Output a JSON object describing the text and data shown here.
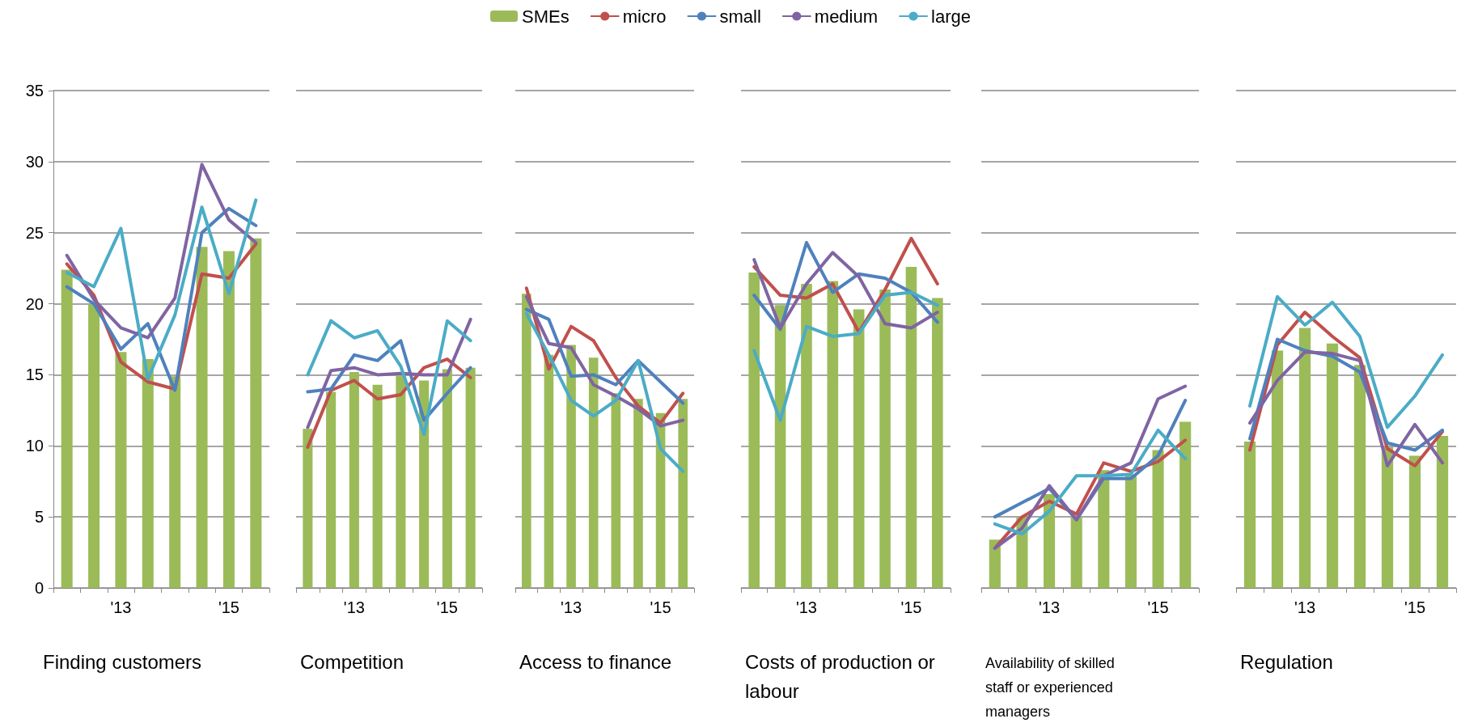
{
  "chart_data": [
    {
      "type": "bar",
      "xlabel": "Finding customers",
      "categories": [
        null,
        null,
        "'13",
        null,
        null,
        null,
        "'15",
        null
      ],
      "ylim": [
        0,
        35
      ],
      "yticks": [
        0,
        5,
        10,
        15,
        20,
        25,
        30,
        35
      ],
      "grid": "y",
      "legend": "top",
      "marker": "none",
      "line_style": "solid",
      "series": [
        {
          "name": "SMEs",
          "color": "#9bbb59",
          "values": [
            22.4,
            20.0,
            16.6,
            16.1,
            14.9,
            24.0,
            23.7,
            24.6
          ]
        },
        {
          "name": "micro",
          "type": "line",
          "color": "#c0504d",
          "values": [
            22.8,
            20.6,
            15.9,
            14.5,
            14.0,
            22.1,
            21.8,
            24.2
          ]
        },
        {
          "name": "small",
          "type": "line",
          "color": "#4f81bd",
          "values": [
            21.2,
            20.0,
            16.8,
            18.6,
            13.9,
            25.0,
            26.7,
            25.5
          ]
        },
        {
          "name": "medium",
          "type": "line",
          "color": "#8064a2",
          "values": [
            23.4,
            20.3,
            18.3,
            17.6,
            20.4,
            29.8,
            25.9,
            24.3
          ]
        },
        {
          "name": "large",
          "type": "line",
          "color": "#4bacc6",
          "values": [
            22.2,
            21.2,
            25.3,
            14.7,
            19.2,
            26.8,
            20.7,
            27.3
          ]
        }
      ]
    },
    {
      "type": "bar",
      "xlabel": "Competition",
      "categories": [
        null,
        null,
        "'13",
        null,
        null,
        null,
        "'15",
        null
      ],
      "ylim": [
        0,
        35
      ],
      "yticks": [
        0,
        5,
        10,
        15,
        20,
        25,
        30,
        35
      ],
      "tick_labels": "x",
      "grid": "y",
      "marker": "none",
      "line_style": "solid",
      "series": [
        {
          "color": "#9bbb59",
          "values": [
            11.2,
            13.8,
            15.2,
            14.3,
            15.0,
            14.6,
            15.4,
            15.5
          ]
        },
        {
          "type": "line",
          "color": "#c0504d",
          "values": [
            9.9,
            13.9,
            14.6,
            13.3,
            13.6,
            15.5,
            16.1,
            14.8
          ]
        },
        {
          "type": "line",
          "color": "#4f81bd",
          "values": [
            13.8,
            14.0,
            16.4,
            16.0,
            17.4,
            11.8,
            13.7,
            15.5
          ]
        },
        {
          "type": "line",
          "color": "#8064a2",
          "values": [
            11.3,
            15.3,
            15.5,
            15.0,
            15.1,
            15.0,
            15.0,
            18.9
          ]
        },
        {
          "type": "line",
          "color": "#4bacc6",
          "values": [
            15.0,
            18.8,
            17.6,
            18.1,
            15.6,
            10.8,
            18.8,
            17.4
          ]
        }
      ]
    },
    {
      "type": "bar",
      "xlabel": "Access to finance",
      "categories": [
        null,
        null,
        "'13",
        null,
        null,
        null,
        "'15",
        null
      ],
      "ylim": [
        0,
        35
      ],
      "yticks": [
        0,
        5,
        10,
        15,
        20,
        25,
        30,
        35
      ],
      "tick_labels": "x",
      "grid": "y",
      "marker": "none",
      "line_style": "solid",
      "series": [
        {
          "color": "#9bbb59",
          "values": [
            20.7,
            16.4,
            17.1,
            16.2,
            13.7,
            13.3,
            12.3,
            13.3
          ]
        },
        {
          "type": "line",
          "color": "#c0504d",
          "values": [
            21.1,
            15.4,
            18.4,
            17.4,
            14.8,
            12.8,
            11.6,
            13.7
          ]
        },
        {
          "type": "line",
          "color": "#4f81bd",
          "values": [
            19.6,
            18.9,
            14.9,
            15.0,
            14.3,
            16.0,
            14.5,
            13.0
          ]
        },
        {
          "type": "line",
          "color": "#8064a2",
          "values": [
            20.5,
            17.2,
            16.9,
            14.3,
            13.5,
            12.6,
            11.4,
            11.8
          ]
        },
        {
          "type": "line",
          "color": "#4bacc6",
          "values": [
            19.3,
            16.4,
            13.2,
            12.1,
            13.2,
            16.0,
            9.8,
            8.2
          ]
        }
      ]
    },
    {
      "type": "bar",
      "xlabel": "Costs of production or labour",
      "categories": [
        null,
        null,
        "'13",
        null,
        null,
        null,
        "'15",
        null
      ],
      "ylim": [
        0,
        35
      ],
      "yticks": [
        0,
        5,
        10,
        15,
        20,
        25,
        30,
        35
      ],
      "tick_labels": "x",
      "grid": "y",
      "marker": "none",
      "line_style": "solid",
      "series": [
        {
          "color": "#9bbb59",
          "values": [
            22.2,
            19.9,
            21.4,
            21.6,
            19.6,
            21.0,
            22.6,
            20.4
          ]
        },
        {
          "type": "line",
          "color": "#c0504d",
          "values": [
            22.6,
            20.6,
            20.4,
            21.4,
            18.0,
            21.0,
            24.6,
            21.4
          ]
        },
        {
          "type": "line",
          "color": "#4f81bd",
          "values": [
            20.6,
            18.2,
            24.3,
            20.8,
            22.1,
            21.8,
            20.8,
            18.7
          ]
        },
        {
          "type": "line",
          "color": "#8064a2",
          "values": [
            23.1,
            18.3,
            21.4,
            23.6,
            21.9,
            18.6,
            18.3,
            19.4
          ]
        },
        {
          "type": "line",
          "color": "#4bacc6",
          "values": [
            16.7,
            11.8,
            18.4,
            17.7,
            17.9,
            20.6,
            20.8,
            19.9
          ]
        }
      ]
    },
    {
      "type": "bar",
      "xlabel": "Availability of skilled staff or experienced managers",
      "categories": [
        null,
        null,
        "'13",
        null,
        null,
        null,
        "'15",
        null
      ],
      "ylim": [
        0,
        35
      ],
      "yticks": [
        0,
        5,
        10,
        15,
        20,
        25,
        30,
        35
      ],
      "tick_labels": "x",
      "grid": "y",
      "marker": "none",
      "line_style": "solid",
      "series": [
        {
          "color": "#9bbb59",
          "values": [
            3.4,
            5.0,
            6.6,
            5.0,
            8.3,
            8.0,
            9.7,
            11.7
          ]
        },
        {
          "type": "line",
          "color": "#c0504d",
          "values": [
            2.8,
            5.0,
            6.1,
            5.2,
            8.8,
            8.2,
            8.9,
            10.4
          ]
        },
        {
          "type": "line",
          "color": "#4f81bd",
          "values": [
            5.0,
            6.0,
            7.0,
            4.8,
            7.7,
            7.7,
            9.3,
            13.2
          ]
        },
        {
          "type": "line",
          "color": "#8064a2",
          "values": [
            2.8,
            4.2,
            7.2,
            4.8,
            7.9,
            8.8,
            13.3,
            14.2
          ]
        },
        {
          "type": "line",
          "color": "#4bacc6",
          "values": [
            4.5,
            3.8,
            5.4,
            7.9,
            7.9,
            8.0,
            11.1,
            9.1
          ]
        }
      ]
    },
    {
      "type": "bar",
      "xlabel": "Regulation",
      "categories": [
        null,
        null,
        "'13",
        null,
        null,
        null,
        "'15",
        null
      ],
      "ylim": [
        0,
        35
      ],
      "yticks": [
        0,
        5,
        10,
        15,
        20,
        25,
        30,
        35
      ],
      "tick_labels": "x",
      "grid": "y",
      "marker": "none",
      "line_style": "solid",
      "series": [
        {
          "color": "#9bbb59",
          "values": [
            10.3,
            16.7,
            18.3,
            17.2,
            15.7,
            9.9,
            9.3,
            10.7
          ]
        },
        {
          "type": "line",
          "color": "#c0504d",
          "values": [
            9.7,
            17.1,
            19.4,
            17.7,
            16.2,
            9.8,
            8.6,
            11.0
          ]
        },
        {
          "type": "line",
          "color": "#4f81bd",
          "values": [
            10.5,
            17.5,
            16.7,
            16.3,
            15.2,
            10.2,
            9.7,
            11.1
          ]
        },
        {
          "type": "line",
          "color": "#8064a2",
          "values": [
            11.6,
            14.6,
            16.6,
            16.5,
            16.0,
            8.6,
            11.5,
            8.8
          ]
        },
        {
          "type": "line",
          "color": "#4bacc6",
          "values": [
            12.8,
            20.5,
            18.5,
            20.1,
            17.7,
            11.3,
            13.5,
            16.4
          ]
        }
      ]
    }
  ]
}
